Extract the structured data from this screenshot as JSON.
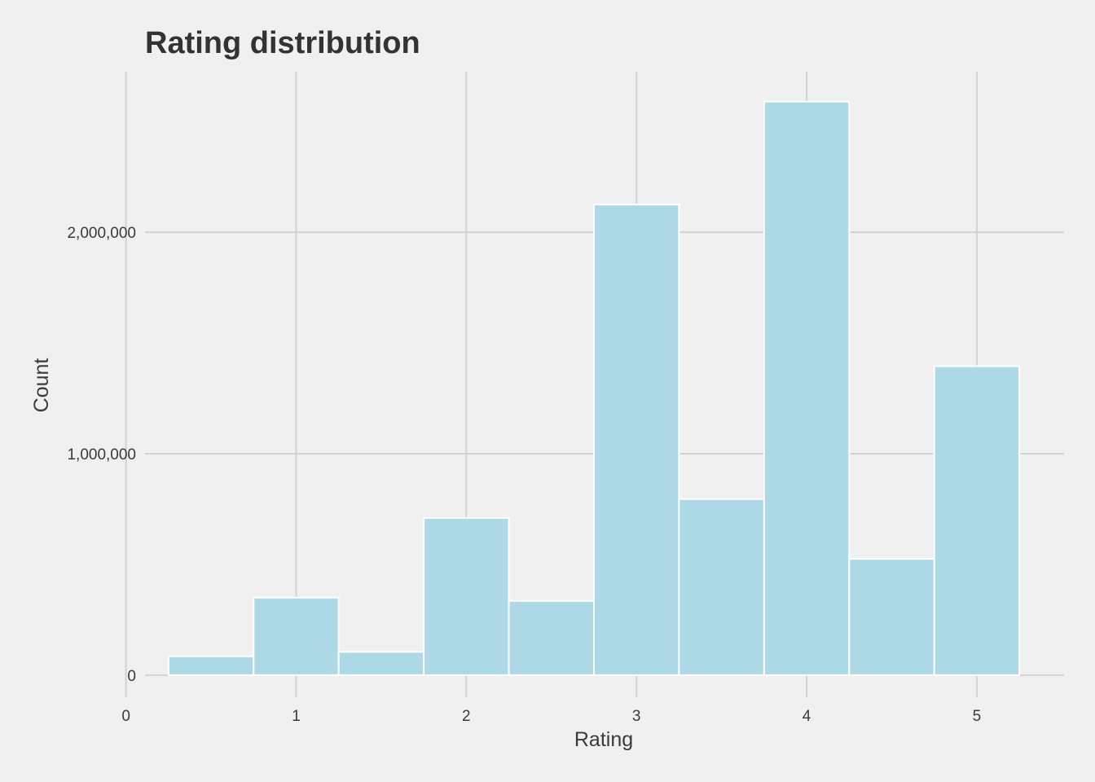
{
  "chart_data": {
    "type": "bar",
    "subtype": "histogram",
    "title": "Rating distribution",
    "xlabel": "Rating",
    "ylabel": "Count",
    "bin_width": 0.5,
    "bins": [
      {
        "x0": 0.25,
        "x1": 0.75,
        "count": 85000
      },
      {
        "x0": 0.75,
        "x1": 1.25,
        "count": 350000
      },
      {
        "x0": 1.25,
        "x1": 1.75,
        "count": 105000
      },
      {
        "x0": 1.75,
        "x1": 2.25,
        "count": 710000
      },
      {
        "x0": 2.25,
        "x1": 2.75,
        "count": 335000
      },
      {
        "x0": 2.75,
        "x1": 3.25,
        "count": 2125000
      },
      {
        "x0": 3.25,
        "x1": 3.75,
        "count": 795000
      },
      {
        "x0": 3.75,
        "x1": 4.25,
        "count": 2590000
      },
      {
        "x0": 4.25,
        "x1": 4.75,
        "count": 525000
      },
      {
        "x0": 4.75,
        "x1": 5.25,
        "count": 1395000
      }
    ],
    "xlim": [
      -0.0125,
      5.5125
    ],
    "ylim": [
      -100000,
      2725000
    ],
    "x_ticks": [
      0,
      1,
      2,
      3,
      4,
      5
    ],
    "x_tick_labels": [
      "0",
      "1",
      "2",
      "3",
      "4",
      "5"
    ],
    "y_ticks": [
      0,
      1000000,
      2000000
    ],
    "y_tick_labels": [
      "0",
      "1,000,000",
      "2,000,000"
    ],
    "grid": true,
    "legend": "none",
    "colors": {
      "bar_fill": "#add8e6",
      "bar_stroke": "#ffffff",
      "grid": "#d2d2d2",
      "background": "#f0f0f0",
      "text": "#3a3a3a"
    }
  }
}
